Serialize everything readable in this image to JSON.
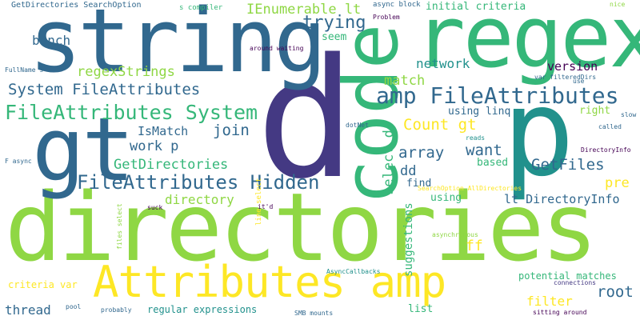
{
  "palette": {
    "yellow": "#fde725",
    "lime": "#8fd744",
    "green": "#35b779",
    "teal": "#21918c",
    "blue": "#31688e",
    "indigo": "#443983",
    "purple": "#440154"
  },
  "words": [
    {
      "text": "directories",
      "color": "lime"
    },
    {
      "text": "d",
      "color": "indigo"
    },
    {
      "text": "string",
      "color": "blue"
    },
    {
      "text": "regex",
      "color": "green"
    },
    {
      "text": "gt",
      "color": "blue"
    },
    {
      "text": "p",
      "color": "teal"
    },
    {
      "text": "code",
      "color": "green"
    },
    {
      "text": "Attributes amp",
      "color": "yellow"
    },
    {
      "text": "amp FileAttributes",
      "color": "blue"
    },
    {
      "text": "FileAttributes System",
      "color": "green"
    },
    {
      "text": "FileAttributes Hidden",
      "color": "blue"
    },
    {
      "text": "System FileAttributes",
      "color": "blue"
    },
    {
      "text": "select d",
      "color": "green"
    },
    {
      "text": "suggestions",
      "color": "green"
    },
    {
      "text": "regexStrings",
      "color": "lime"
    },
    {
      "text": "IEnumerable lt",
      "color": "lime"
    },
    {
      "text": "trying",
      "color": "blue"
    },
    {
      "text": "Count gt",
      "color": "yellow"
    },
    {
      "text": "GetDirectories",
      "color": "green"
    },
    {
      "text": "GetFiles",
      "color": "blue"
    },
    {
      "text": "work p",
      "color": "blue"
    },
    {
      "text": "array",
      "color": "blue"
    },
    {
      "text": "join",
      "color": "blue"
    },
    {
      "text": "want",
      "color": "blue"
    },
    {
      "text": "root",
      "color": "blue"
    },
    {
      "text": "match",
      "color": "lime"
    },
    {
      "text": "IsMatch",
      "color": "blue"
    },
    {
      "text": "directory",
      "color": "lime"
    },
    {
      "text": "bunch",
      "color": "blue"
    },
    {
      "text": "network",
      "color": "teal"
    },
    {
      "text": "version",
      "color": "purple"
    },
    {
      "text": "lt DirectoryInfo",
      "color": "blue"
    },
    {
      "text": "dd",
      "color": "blue"
    },
    {
      "text": "pre",
      "color": "yellow"
    },
    {
      "text": "ff",
      "color": "yellow"
    },
    {
      "text": "filter",
      "color": "yellow"
    },
    {
      "text": "thread",
      "color": "blue"
    },
    {
      "text": "right",
      "color": "lime"
    },
    {
      "text": "based",
      "color": "green"
    },
    {
      "text": "initial criteria",
      "color": "green"
    },
    {
      "text": "using linq",
      "color": "blue"
    },
    {
      "text": "seem",
      "color": "green"
    },
    {
      "text": "find",
      "color": "blue"
    },
    {
      "text": "using",
      "color": "green"
    },
    {
      "text": "list",
      "color": "green"
    },
    {
      "text": "potential matches",
      "color": "green"
    },
    {
      "text": "regular expressions",
      "color": "teal"
    },
    {
      "text": "criteria var",
      "color": "yellow"
    },
    {
      "text": "GetDirectories SearchOption",
      "color": "blue"
    },
    {
      "text": "s compiler",
      "color": "green"
    },
    {
      "text": "async block",
      "color": "blue"
    },
    {
      "text": "nice",
      "color": "lime"
    },
    {
      "text": "Problem",
      "color": "purple"
    },
    {
      "text": "var filteredDirs",
      "color": "blue"
    },
    {
      "text": "use",
      "color": "blue"
    },
    {
      "text": "around waiting",
      "color": "purple"
    },
    {
      "text": "FullName s",
      "color": "blue"
    },
    {
      "text": "dotNet",
      "color": "blue"
    },
    {
      "text": "reads",
      "color": "teal"
    },
    {
      "text": "called",
      "color": "blue"
    },
    {
      "text": "slow",
      "color": "blue"
    },
    {
      "text": "DirectoryInfo",
      "color": "purple"
    },
    {
      "text": "F async",
      "color": "blue"
    },
    {
      "text": "SearchOption AllDirectories",
      "color": "yellow"
    },
    {
      "text": "it'd",
      "color": "purple"
    },
    {
      "text": "suck",
      "color": "purple"
    },
    {
      "text": "asynchronous",
      "color": "lime"
    },
    {
      "text": "AsyncCallbacks",
      "color": "teal"
    },
    {
      "text": "connections",
      "color": "indigo"
    },
    {
      "text": "sitting around",
      "color": "purple"
    },
    {
      "text": "SMB mounts",
      "color": "blue"
    },
    {
      "text": "probably",
      "color": "blue"
    },
    {
      "text": "pool",
      "color": "blue"
    },
    {
      "text": "line select",
      "color": "yellow"
    },
    {
      "text": "files select",
      "color": "lime"
    }
  ]
}
